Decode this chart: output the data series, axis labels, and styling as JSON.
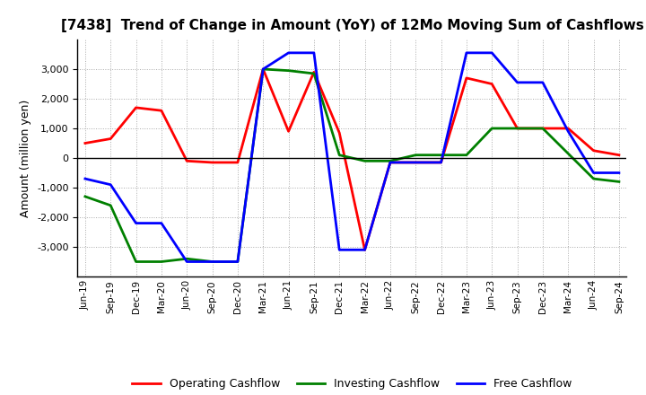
{
  "title": "[7438]  Trend of Change in Amount (YoY) of 12Mo Moving Sum of Cashflows",
  "ylabel": "Amount (million yen)",
  "x_labels": [
    "Jun-19",
    "Sep-19",
    "Dec-19",
    "Mar-20",
    "Jun-20",
    "Sep-20",
    "Dec-20",
    "Mar-21",
    "Jun-21",
    "Sep-21",
    "Dec-21",
    "Mar-22",
    "Jun-22",
    "Sep-22",
    "Dec-22",
    "Mar-23",
    "Jun-23",
    "Sep-23",
    "Dec-23",
    "Mar-24",
    "Jun-24",
    "Sep-24"
  ],
  "operating": [
    500,
    650,
    1700,
    1600,
    -100,
    -150,
    -150,
    3000,
    900,
    2900,
    850,
    -3100,
    -150,
    -150,
    -150,
    2700,
    2500,
    1000,
    1000,
    1000,
    250,
    100
  ],
  "investing": [
    -1300,
    -1600,
    -3500,
    -3500,
    -3400,
    -3500,
    -3500,
    3000,
    2950,
    2850,
    100,
    -100,
    -100,
    100,
    100,
    100,
    1000,
    1000,
    1000,
    150,
    -700,
    -800
  ],
  "free": [
    -700,
    -900,
    -2200,
    -2200,
    -3500,
    -3500,
    -3500,
    3000,
    3550,
    3550,
    -3100,
    -3100,
    -150,
    -150,
    -150,
    3550,
    3550,
    2550,
    2550,
    900,
    -500,
    -500
  ],
  "ylim": [
    -4000,
    4000
  ],
  "yticks": [
    -3000,
    -2000,
    -1000,
    0,
    1000,
    2000,
    3000
  ],
  "colors": {
    "operating": "#ff0000",
    "investing": "#008000",
    "free": "#0000ff"
  },
  "legend_labels": [
    "Operating Cashflow",
    "Investing Cashflow",
    "Free Cashflow"
  ],
  "grid_color": "#aaaaaa",
  "grid_style": "dotted",
  "background_color": "#ffffff",
  "linewidth": 2.0
}
